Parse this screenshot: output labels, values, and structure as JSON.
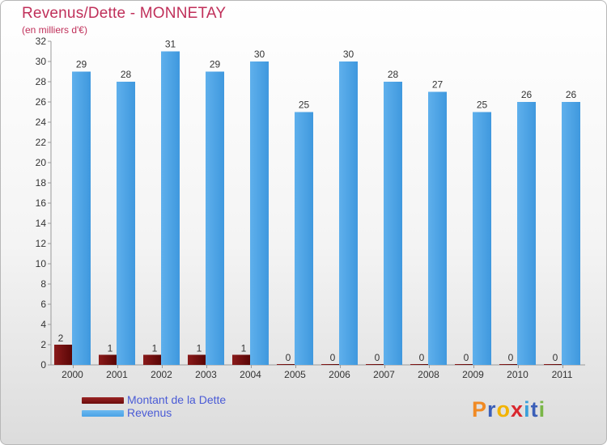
{
  "header": {
    "title": "Revenus/Dette - MONNETAY",
    "subtitle": "(en milliers d'€)"
  },
  "legend": {
    "debt_label": "Montant de la Dette",
    "revenue_label": "Revenus"
  },
  "logo": {
    "text": "Proxiti",
    "colors": [
      "#f08a24",
      "#3b5fb8",
      "#f2b300",
      "#d9272e",
      "#3aa0da",
      "#3b5fb8",
      "#7ab648"
    ]
  },
  "colors": {
    "debt": "#6b0a0a",
    "revenue": "#4aa3e6",
    "text": "#c0305a",
    "legend_text": "#4a5bd6"
  },
  "chart_data": {
    "type": "bar",
    "title": "Revenus/Dette - MONNETAY",
    "ylabel": "(en milliers d'€)",
    "categories": [
      "2000",
      "2001",
      "2002",
      "2003",
      "2004",
      "2005",
      "2006",
      "2007",
      "2008",
      "2009",
      "2010",
      "2011"
    ],
    "series": [
      {
        "name": "Montant de la Dette",
        "values": [
          2,
          1,
          1,
          1,
          1,
          0,
          0,
          0,
          0,
          0,
          0,
          0
        ]
      },
      {
        "name": "Revenus",
        "values": [
          29,
          28,
          31,
          29,
          30,
          25,
          30,
          28,
          27,
          25,
          26,
          26
        ]
      }
    ],
    "ylim": [
      0,
      32
    ],
    "yticks": [
      0,
      2,
      4,
      6,
      8,
      10,
      12,
      14,
      16,
      18,
      20,
      22,
      24,
      26,
      28,
      30,
      32
    ],
    "grid": false,
    "legend_position": "bottom-left"
  }
}
